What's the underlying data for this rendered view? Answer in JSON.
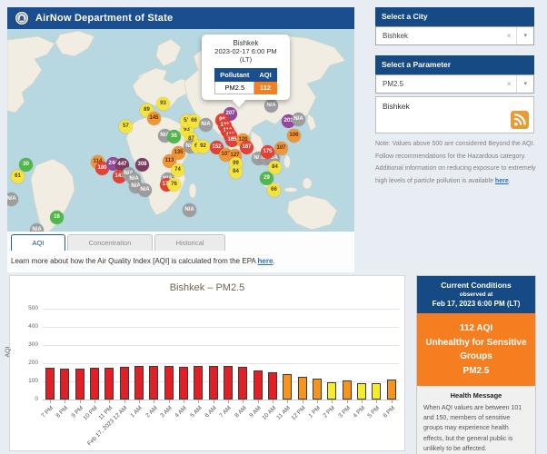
{
  "header": {
    "title": "AirNow Department of State"
  },
  "map": {
    "popup": {
      "city": "Bishkek",
      "datetime": "2023-02-17 6:00 PM",
      "tz": "(LT)",
      "pollutant_header": "Pollutant",
      "aqi_header": "AQI",
      "pollutant": "PM2.5",
      "aqi": "112"
    },
    "markers": [
      {
        "value": "30",
        "level": "green",
        "x": 20,
        "y": 149
      },
      {
        "value": "61",
        "level": "yellow",
        "x": 11,
        "y": 162
      },
      {
        "value": "N/A",
        "level": "gray",
        "x": 4,
        "y": 187
      },
      {
        "value": "16",
        "level": "green",
        "x": 54,
        "y": 207
      },
      {
        "value": "N/A",
        "level": "gray",
        "x": 32,
        "y": 221
      },
      {
        "value": "57",
        "level": "yellow",
        "x": 130,
        "y": 107
      },
      {
        "value": "89",
        "level": "yellow",
        "x": 153,
        "y": 89
      },
      {
        "value": "145",
        "level": "orange",
        "x": 161,
        "y": 98
      },
      {
        "value": "93",
        "level": "yellow",
        "x": 171,
        "y": 82
      },
      {
        "value": "114",
        "level": "orange",
        "x": 99,
        "y": 146
      },
      {
        "value": "180",
        "level": "red",
        "x": 104,
        "y": 153
      },
      {
        "value": "244",
        "level": "purple",
        "x": 116,
        "y": 148
      },
      {
        "value": "447",
        "level": "maroon",
        "x": 126,
        "y": 149
      },
      {
        "value": "141",
        "level": "red",
        "x": 123,
        "y": 162
      },
      {
        "value": "N/A",
        "level": "gray",
        "x": 133,
        "y": 159
      },
      {
        "value": "N/A",
        "level": "gray",
        "x": 139,
        "y": 165
      },
      {
        "value": "308",
        "level": "maroon",
        "x": 148,
        "y": 149
      },
      {
        "value": "N/A",
        "level": "gray",
        "x": 141,
        "y": 173
      },
      {
        "value": "N/A",
        "level": "gray",
        "x": 151,
        "y": 177
      },
      {
        "value": "N/A",
        "level": "gray",
        "x": 173,
        "y": 117
      },
      {
        "value": "36",
        "level": "green",
        "x": 183,
        "y": 118
      },
      {
        "value": "93",
        "level": "yellow",
        "x": 197,
        "y": 111
      },
      {
        "value": "52",
        "level": "yellow",
        "x": 197,
        "y": 101
      },
      {
        "value": "66",
        "level": "yellow",
        "x": 205,
        "y": 101
      },
      {
        "value": "N/A",
        "level": "gray",
        "x": 218,
        "y": 105
      },
      {
        "value": "87",
        "level": "yellow",
        "x": 202,
        "y": 121
      },
      {
        "value": "N/A",
        "level": "gray",
        "x": 201,
        "y": 129
      },
      {
        "value": "63",
        "level": "yellow",
        "x": 209,
        "y": 129
      },
      {
        "value": "92",
        "level": "yellow",
        "x": 215,
        "y": 129
      },
      {
        "value": "135",
        "level": "orange",
        "x": 188,
        "y": 136
      },
      {
        "value": "113",
        "level": "orange",
        "x": 178,
        "y": 145
      },
      {
        "value": "74",
        "level": "yellow",
        "x": 187,
        "y": 155
      },
      {
        "value": "N/A",
        "level": "gray",
        "x": 176,
        "y": 165
      },
      {
        "value": "172",
        "level": "red",
        "x": 175,
        "y": 171
      },
      {
        "value": "76",
        "level": "yellow",
        "x": 183,
        "y": 171
      },
      {
        "value": "207",
        "level": "purple",
        "x": 245,
        "y": 93
      },
      {
        "value": "99",
        "level": "red",
        "x": 236,
        "y": 100
      },
      {
        "value": "131",
        "level": "red",
        "x": 239,
        "y": 106
      },
      {
        "value": "110",
        "level": "red",
        "x": 242,
        "y": 112
      },
      {
        "value": "115",
        "level": "red",
        "x": 245,
        "y": 117
      },
      {
        "value": "165",
        "level": "red",
        "x": 247,
        "y": 122
      },
      {
        "value": "120",
        "level": "orange",
        "x": 259,
        "y": 122
      },
      {
        "value": "152",
        "level": "red",
        "x": 230,
        "y": 130
      },
      {
        "value": "167",
        "level": "red",
        "x": 263,
        "y": 130
      },
      {
        "value": "107",
        "level": "orange",
        "x": 240,
        "y": 138
      },
      {
        "value": "127",
        "level": "orange",
        "x": 250,
        "y": 139
      },
      {
        "value": "99",
        "level": "yellow",
        "x": 251,
        "y": 148
      },
      {
        "value": "84",
        "level": "yellow",
        "x": 251,
        "y": 157
      },
      {
        "value": "N/A",
        "level": "gray",
        "x": 276,
        "y": 142
      },
      {
        "value": "N/A",
        "level": "gray",
        "x": 284,
        "y": 142
      },
      {
        "value": "N/A",
        "level": "gray",
        "x": 292,
        "y": 142
      },
      {
        "value": "175",
        "level": "red",
        "x": 286,
        "y": 135
      },
      {
        "value": "107",
        "level": "orange",
        "x": 301,
        "y": 131
      },
      {
        "value": "201",
        "level": "purple",
        "x": 309,
        "y": 101
      },
      {
        "value": "N/A",
        "level": "gray",
        "x": 320,
        "y": 99
      },
      {
        "value": "106",
        "level": "orange",
        "x": 315,
        "y": 117
      },
      {
        "value": "84",
        "level": "yellow",
        "x": 294,
        "y": 152
      },
      {
        "value": "29",
        "level": "green",
        "x": 285,
        "y": 164
      },
      {
        "value": "66",
        "level": "yellow",
        "x": 293,
        "y": 177
      },
      {
        "value": "N/A",
        "level": "gray",
        "x": 200,
        "y": 199
      },
      {
        "value": "N/A",
        "level": "gray",
        "x": 290,
        "y": 84
      }
    ]
  },
  "tabs": {
    "aqi": "AQI",
    "concentration": "Concentration",
    "historical": "Historical"
  },
  "learn_more": {
    "prefix": "Learn more about how the Air Quality Index [AQI] is calculated from the EPA ",
    "link_text": "here",
    "suffix": "."
  },
  "sidebar": {
    "city": {
      "header": "Select a City",
      "value": "Bishkek"
    },
    "parameter": {
      "header": "Select a Parameter",
      "value": "PM2.5"
    },
    "feed": {
      "city": "Bishkek"
    },
    "note": {
      "prefix": "Note: Values above 500 are considered Beyond the AQI. Follow recommendations for the Hazardous category. Additional information on reducing exposure to extremely high levels of particle pollution is available ",
      "link_text": "here",
      "suffix": "."
    }
  },
  "chart_data": {
    "type": "bar",
    "title": "Bishkek – PM2.5",
    "xlabel": "",
    "ylabel": "AQI",
    "ylim": [
      0,
      500
    ],
    "yticks": [
      0,
      100,
      200,
      300,
      400,
      500
    ],
    "grid": true,
    "categories": [
      "7 PM",
      "8 PM",
      "9 PM",
      "10 PM",
      "11 PM",
      "Feb 17, 2023 12 AM",
      "1 AM",
      "2 AM",
      "3 AM",
      "4 AM",
      "5 AM",
      "6 AM",
      "7 AM",
      "8 AM",
      "9 AM",
      "10 AM",
      "11 AM",
      "12 PM",
      "1 PM",
      "2 PM",
      "3 PM",
      "4 PM",
      "5 PM",
      "6 PM"
    ],
    "values": [
      175,
      172,
      171,
      177,
      177,
      180,
      185,
      185,
      185,
      182,
      185,
      185,
      186,
      182,
      160,
      152,
      140,
      123,
      117,
      95,
      103,
      88,
      90,
      112
    ]
  },
  "current_conditions": {
    "title": "Current Conditions",
    "observed_at_label": "observed at",
    "observed_at": "Feb 17, 2023 6:00 PM (LT)",
    "aqi_line": "112 AQI",
    "category": "Unhealthy for Sensitive Groups",
    "pollutant": "PM2.5",
    "health_title": "Health Message",
    "health_text": "When AQI values are between 101 and 150, members of sensitive groups may experience health effects, but the general public is unlikely to be affected."
  },
  "colors": {
    "header_blue": "#164a85",
    "accent_orange": "#f57e20",
    "aqi_bar_yellow": "#f4ed27",
    "aqi_bar_orange": "#f7941d",
    "aqi_bar_red": "#e21f26"
  }
}
